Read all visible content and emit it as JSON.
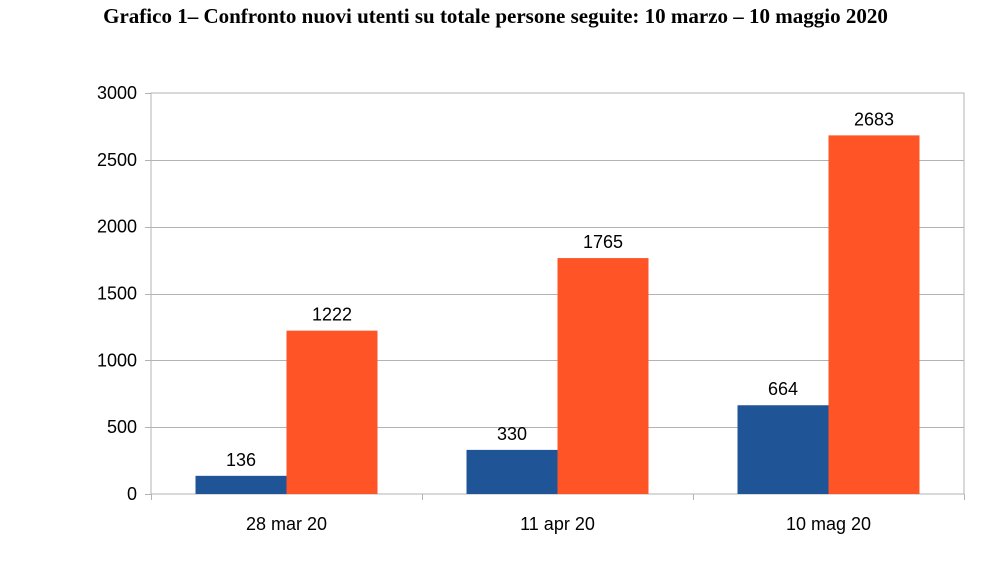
{
  "title": "Grafico 1– Confronto nuovi utenti su totale persone seguite: 10 marzo – 10 maggio 2020",
  "chart_data": {
    "type": "bar",
    "title": "Grafico 1– Confronto nuovi utenti su totale persone seguite: 10 marzo – 10 maggio 2020",
    "categories": [
      "28 mar 20",
      "11 apr 20",
      "10 mag 20"
    ],
    "series": [
      {
        "values": [
          136,
          330,
          664
        ],
        "color": "#1f5597"
      },
      {
        "values": [
          1222,
          1765,
          2683
        ],
        "color": "#ff5426"
      }
    ],
    "ylim": [
      0,
      3000
    ],
    "yticks": [
      0,
      500,
      1000,
      1500,
      2000,
      2500,
      3000
    ],
    "grid": true,
    "legend": "none",
    "xlabel": "",
    "ylabel": ""
  }
}
